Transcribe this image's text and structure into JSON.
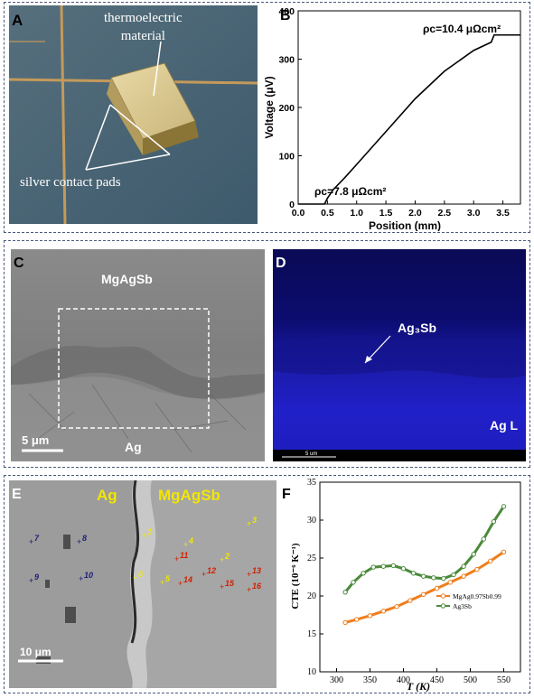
{
  "panelA": {
    "letter": "A",
    "label_material": "thermoelectric\nmaterial",
    "label_pads": "silver contact pads"
  },
  "panelB": {
    "letter": "B",
    "annot_top": "ρc=10.4 μΩcm²",
    "annot_bottom": "ρc=7.8 μΩcm²",
    "chart_data": {
      "type": "line",
      "xlabel": "Position (mm)",
      "ylabel": "Voltage (μV)",
      "xlim": [
        0.0,
        3.8
      ],
      "ylim": [
        0,
        400
      ],
      "xticks": [
        "0.0",
        "0.5",
        "1.0",
        "1.5",
        "2.0",
        "2.5",
        "3.0",
        "3.5"
      ],
      "yticks": [
        "0",
        "100",
        "200",
        "300",
        "400"
      ],
      "x": [
        0.0,
        0.45,
        0.5,
        0.6,
        0.8,
        1.0,
        1.5,
        2.0,
        2.5,
        3.0,
        3.3,
        3.35,
        3.8
      ],
      "y": [
        0,
        0,
        12,
        30,
        55,
        82,
        150,
        218,
        275,
        318,
        335,
        350,
        350
      ],
      "grid": false
    }
  },
  "panelC": {
    "letter": "C",
    "label_top": "MgAgSb",
    "label_bottom": "Ag",
    "scalebar": "5 μm"
  },
  "panelD": {
    "letter": "D",
    "label_phase": "Ag₃Sb",
    "label_map": "Ag L",
    "scalebar": "5 um"
  },
  "panelE": {
    "letter": "E",
    "label_left": "Ag",
    "label_right": "MgAgSb",
    "scalebar": "10 μm",
    "points": [
      "1",
      "2",
      "3",
      "4",
      "5",
      "6",
      "7",
      "8",
      "9",
      "10",
      "11",
      "12",
      "13",
      "14",
      "15",
      "16"
    ]
  },
  "panelF": {
    "letter": "F",
    "chart_data": {
      "type": "line",
      "xlabel": "T (K)",
      "ylabel": "CTE (10⁻⁶ K⁻¹)",
      "xlim": [
        275,
        575
      ],
      "ylim": [
        10,
        35
      ],
      "xticks": [
        "300",
        "350",
        "400",
        "450",
        "500",
        "550"
      ],
      "yticks": [
        "10",
        "15",
        "20",
        "25",
        "30",
        "35"
      ],
      "series": [
        {
          "name": "MgAg0.97Sb0.99",
          "color": "#f07d1b",
          "x": [
            313,
            330,
            350,
            370,
            390,
            410,
            430,
            450,
            470,
            490,
            510,
            530,
            550
          ],
          "y": [
            16.5,
            16.9,
            17.4,
            18.0,
            18.6,
            19.4,
            20.2,
            21.0,
            21.8,
            22.6,
            23.5,
            24.6,
            25.8
          ]
        },
        {
          "name": "Ag3Sb",
          "color": "#4a8a3a",
          "x": [
            313,
            325,
            340,
            355,
            370,
            385,
            400,
            415,
            430,
            445,
            460,
            475,
            490,
            505,
            520,
            535,
            550
          ],
          "y": [
            20.5,
            21.8,
            23.0,
            23.8,
            23.9,
            24.0,
            23.6,
            23.0,
            22.6,
            22.4,
            22.3,
            22.8,
            23.9,
            25.5,
            27.5,
            29.8,
            31.8
          ]
        }
      ],
      "legend": "right",
      "grid": false
    }
  }
}
